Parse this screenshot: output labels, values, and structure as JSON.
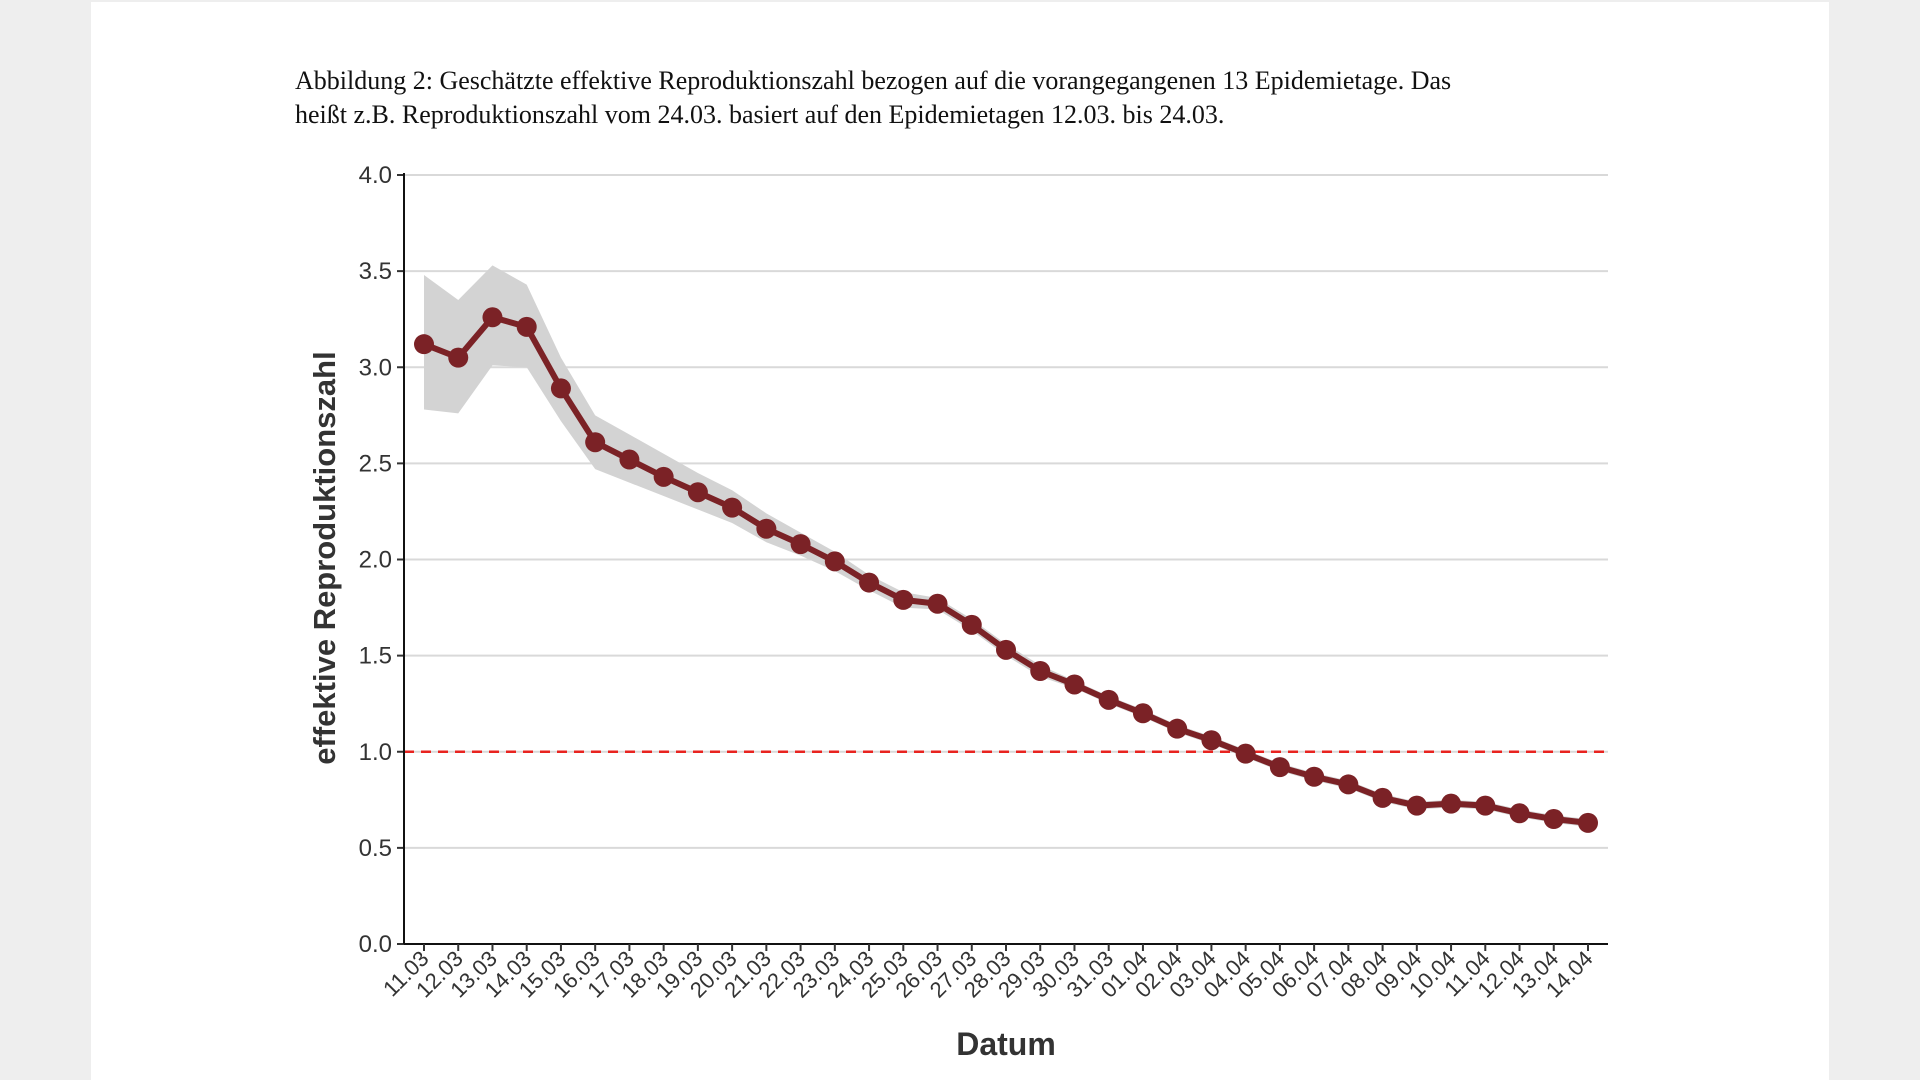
{
  "caption_lines": [
    "Abbildung 2: Geschätzte effektive Reproduktionszahl bezogen auf die vorangegangenen 13 Epidemietage. Das",
    "heißt z.B. Reproduktionszahl vom 24.03. basiert auf den Epidemietagen 12.03. bis 24.03."
  ],
  "chart_data": {
    "type": "line",
    "y_label": "effektive Reproduktionszahl",
    "x_label": "Datum",
    "categories": [
      "11.03",
      "12.03",
      "13.03",
      "14.03",
      "15.03",
      "16.03",
      "17.03",
      "18.03",
      "19.03",
      "20.03",
      "21.03",
      "22.03",
      "23.03",
      "24.03",
      "25.03",
      "26.03",
      "27.03",
      "28.03",
      "29.03",
      "30.03",
      "31.03",
      "01.04",
      "02.04",
      "03.04",
      "04.04",
      "05.04",
      "06.04",
      "07.04",
      "08.04",
      "09.04",
      "10.04",
      "11.04",
      "12.04",
      "13.04",
      "14.04"
    ],
    "values": [
      3.12,
      3.05,
      3.26,
      3.21,
      2.89,
      2.61,
      2.52,
      2.43,
      2.35,
      2.27,
      2.16,
      2.08,
      1.99,
      1.88,
      1.79,
      1.77,
      1.66,
      1.53,
      1.42,
      1.35,
      1.27,
      1.2,
      1.12,
      1.06,
      0.99,
      0.92,
      0.87,
      0.83,
      0.76,
      0.72,
      0.73,
      0.72,
      0.68,
      0.65,
      0.63
    ],
    "color": "#7b2226",
    "band": {
      "color": "#d3d3d3",
      "lower": [
        2.78,
        2.76,
        3.01,
        3.0,
        2.72,
        2.47,
        2.4,
        2.33,
        2.26,
        2.19,
        2.09,
        2.02,
        1.94,
        1.84,
        1.75,
        1.74,
        1.63,
        1.5,
        1.39,
        1.33,
        1.25,
        1.18,
        1.1,
        1.04,
        0.97,
        0.9,
        0.85,
        0.81,
        0.74,
        0.7,
        0.71,
        0.7,
        0.66,
        0.63,
        0.61
      ],
      "upper": [
        3.48,
        3.35,
        3.53,
        3.43,
        3.05,
        2.75,
        2.65,
        2.55,
        2.45,
        2.36,
        2.24,
        2.14,
        2.04,
        1.92,
        1.83,
        1.8,
        1.69,
        1.56,
        1.45,
        1.37,
        1.29,
        1.22,
        1.14,
        1.08,
        1.01,
        0.94,
        0.89,
        0.85,
        0.78,
        0.74,
        0.75,
        0.74,
        0.7,
        0.67,
        0.65
      ]
    },
    "reference_line": {
      "value": 1,
      "color": "#e8231f"
    },
    "ylim": [
      0,
      4
    ],
    "yticks": [
      {
        "value": 0,
        "label": "0.0"
      },
      0.5,
      {
        "value": 1,
        "label": "1.0"
      },
      1.5,
      {
        "value": 2,
        "label": "2.0"
      },
      2.5,
      {
        "value": 3,
        "label": "3.0"
      },
      3.5,
      {
        "value": 4,
        "label": "4.0"
      }
    ],
    "grid": true
  }
}
